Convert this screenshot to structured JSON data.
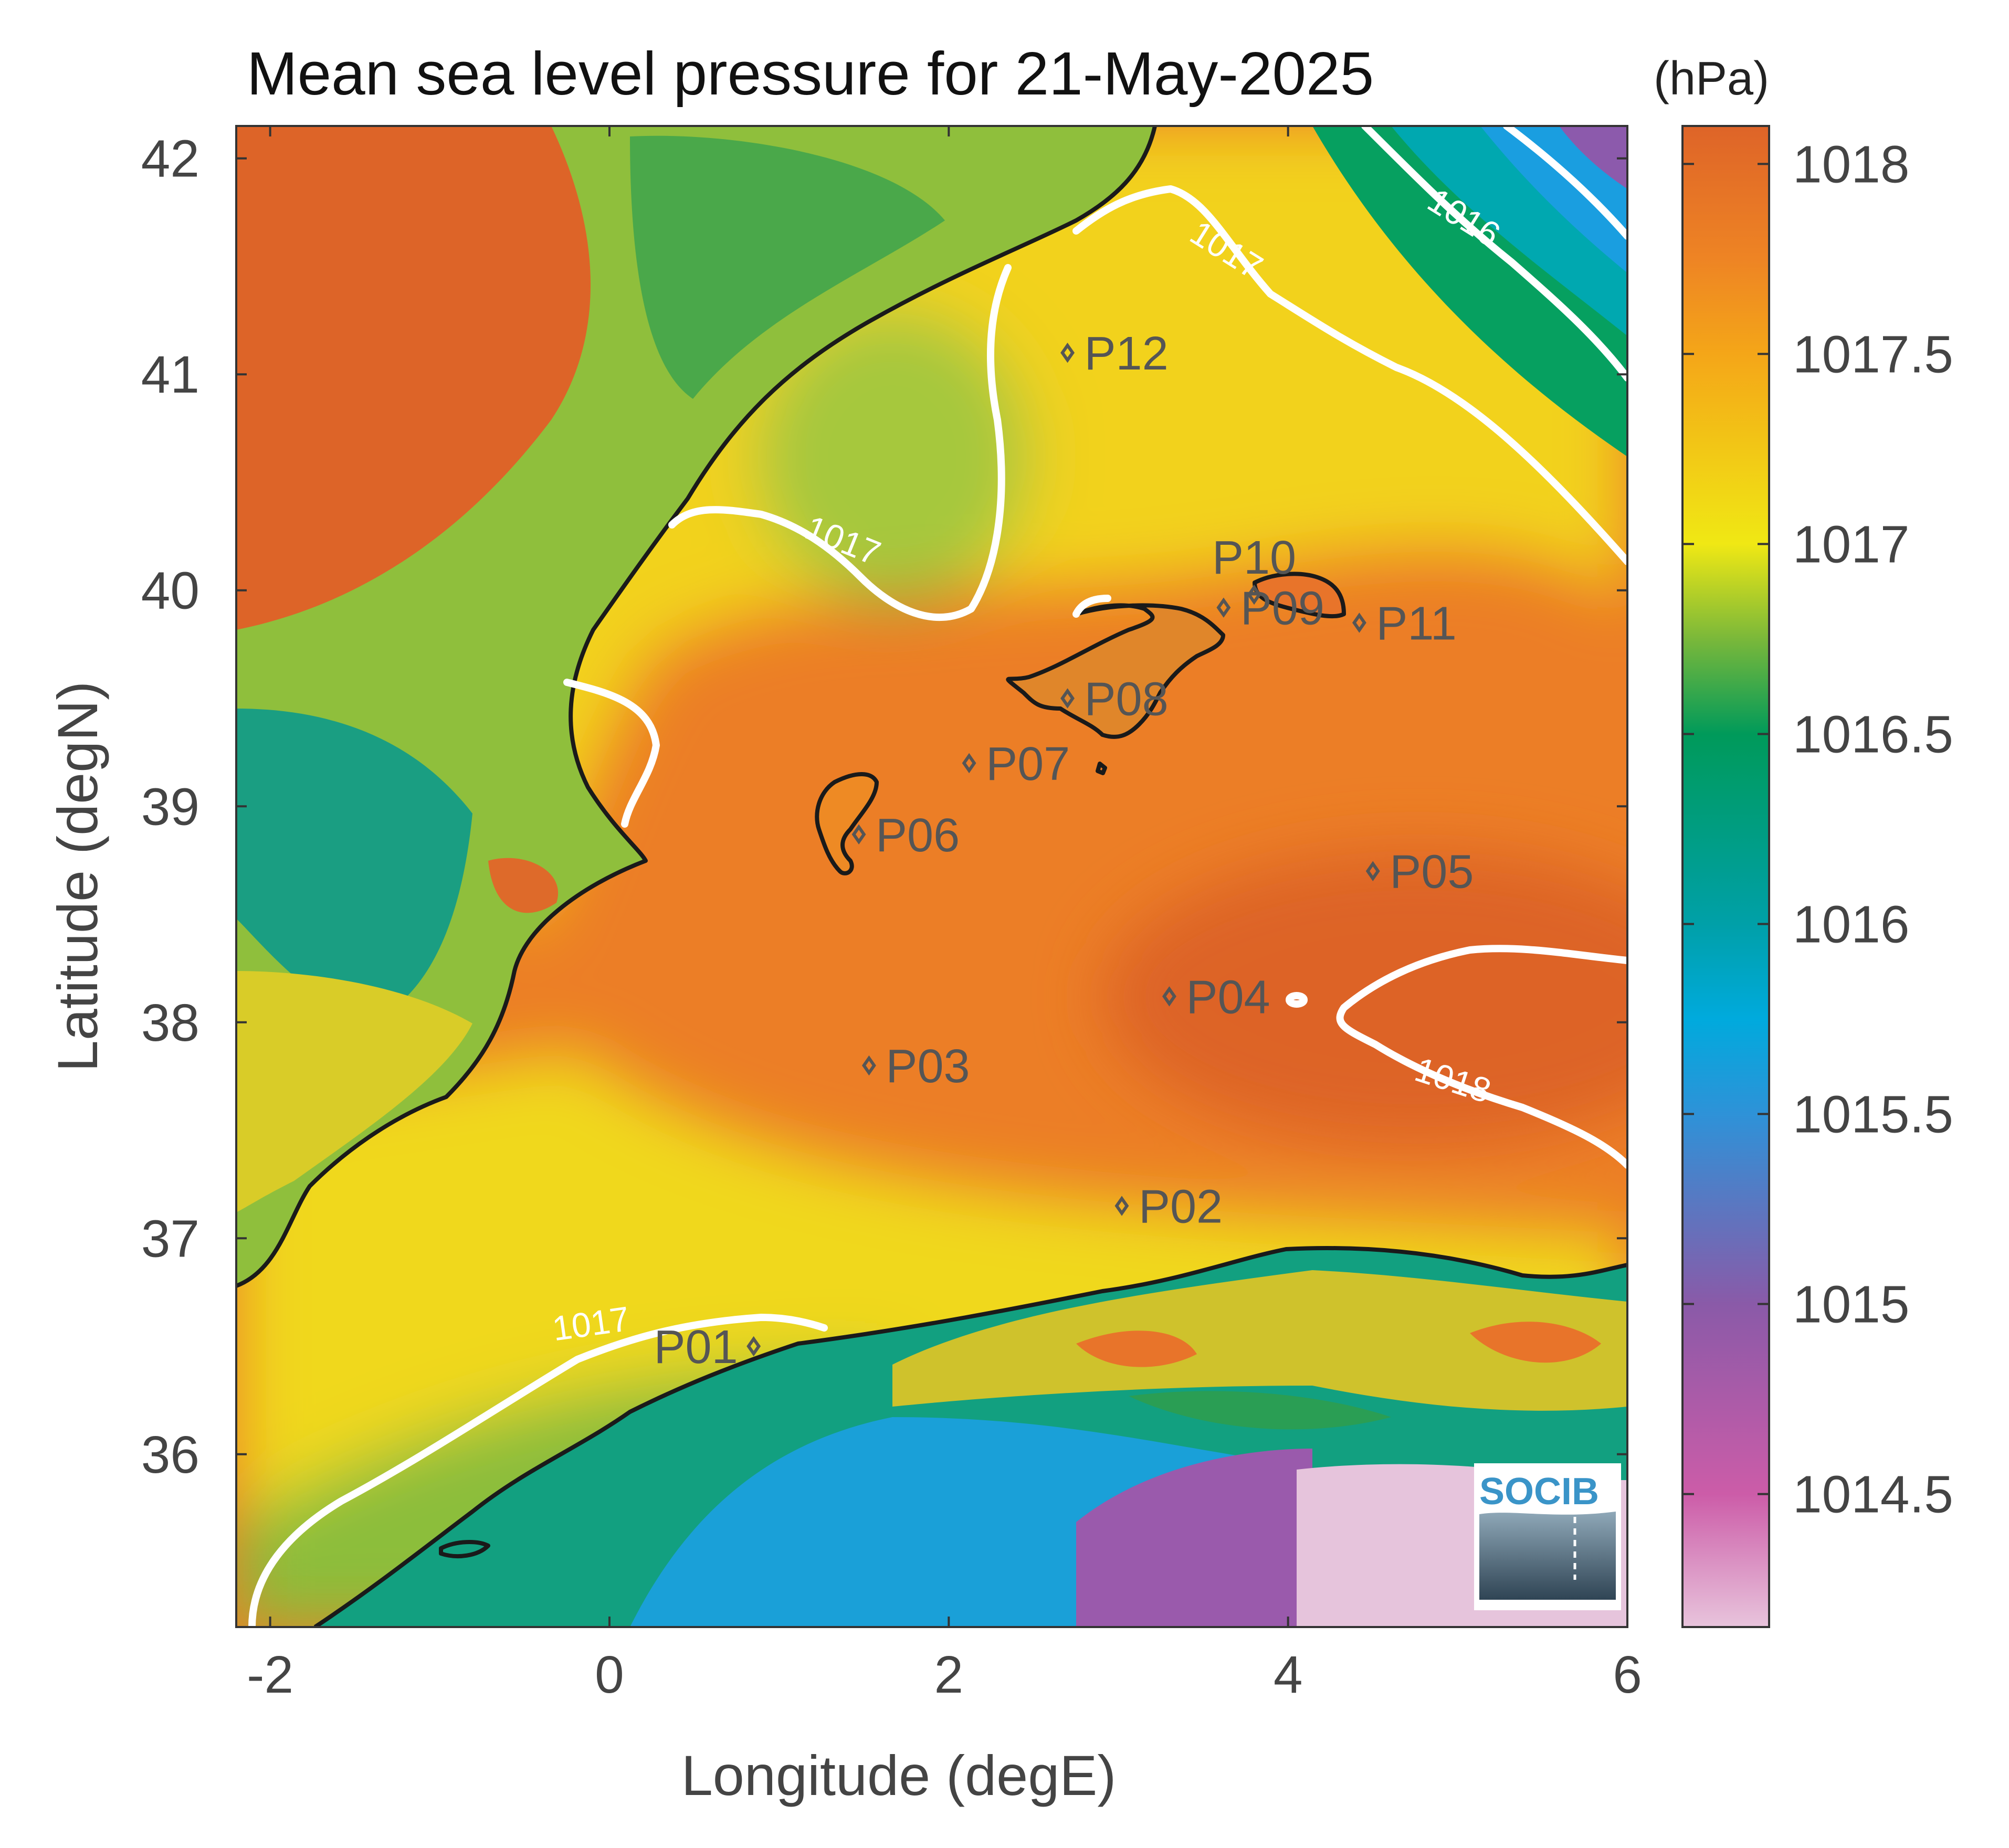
{
  "title": "Mean sea level pressure for 21-May-2025",
  "units": "(hPa)",
  "xlabel": "Longitude (degE)",
  "ylabel": "Latitude (degN)",
  "logo_text": "SOCIB",
  "x_range": [
    -2.2,
    6.0
  ],
  "y_range": [
    35.2,
    42.15
  ],
  "x_ticks": [
    {
      "value": -2,
      "label": "-2"
    },
    {
      "value": 0,
      "label": "0"
    },
    {
      "value": 2,
      "label": "2"
    },
    {
      "value": 4,
      "label": "4"
    },
    {
      "value": 6,
      "label": "6"
    }
  ],
  "y_ticks": [
    {
      "value": 36,
      "label": "36"
    },
    {
      "value": 37,
      "label": "37"
    },
    {
      "value": 38,
      "label": "38"
    },
    {
      "value": 39,
      "label": "39"
    },
    {
      "value": 40,
      "label": "40"
    },
    {
      "value": 41,
      "label": "41"
    },
    {
      "value": 42,
      "label": "42"
    }
  ],
  "colorbar": {
    "range": [
      1014.15,
      1018.1
    ],
    "ticks": [
      {
        "value": 1014.5,
        "label": "1014.5"
      },
      {
        "value": 1015,
        "label": "1015"
      },
      {
        "value": 1015.5,
        "label": "1015.5"
      },
      {
        "value": 1016,
        "label": "1016"
      },
      {
        "value": 1016.5,
        "label": "1016.5"
      },
      {
        "value": 1017,
        "label": "1017"
      },
      {
        "value": 1017.5,
        "label": "1017.5"
      },
      {
        "value": 1018,
        "label": "1018"
      }
    ],
    "stops": [
      {
        "value": 1014.15,
        "color": "#e8c4dc"
      },
      {
        "value": 1014.5,
        "color": "#cc5ca8"
      },
      {
        "value": 1015.0,
        "color": "#8a5aa8"
      },
      {
        "value": 1015.5,
        "color": "#2e92d8"
      },
      {
        "value": 1015.75,
        "color": "#00aadd"
      },
      {
        "value": 1016.0,
        "color": "#00a0a8"
      },
      {
        "value": 1016.5,
        "color": "#009a5a"
      },
      {
        "value": 1016.75,
        "color": "#7ab83a"
      },
      {
        "value": 1017.0,
        "color": "#f0e814"
      },
      {
        "value": 1017.5,
        "color": "#f4a618"
      },
      {
        "value": 1017.75,
        "color": "#ee8424"
      },
      {
        "value": 1018.1,
        "color": "#de6428"
      }
    ]
  },
  "contour_labels": [
    {
      "text": "1016",
      "lon": 5.0,
      "lat": 41.68,
      "angle": 32
    },
    {
      "text": "1017",
      "lon": 3.6,
      "lat": 41.53,
      "angle": 32
    },
    {
      "text": "1017",
      "lon": 1.35,
      "lat": 40.18,
      "angle": 22
    },
    {
      "text": "1017",
      "lon": -0.1,
      "lat": 36.55,
      "angle": -8
    },
    {
      "text": "1018",
      "lon": 4.95,
      "lat": 37.68,
      "angle": 18
    }
  ],
  "stations": [
    {
      "name": "P01",
      "lon": 0.85,
      "lat": 36.5
    },
    {
      "name": "P02",
      "lon": 3.02,
      "lat": 37.15
    },
    {
      "name": "P03",
      "lon": 1.53,
      "lat": 37.8
    },
    {
      "name": "P04",
      "lon": 3.3,
      "lat": 38.12
    },
    {
      "name": "P05",
      "lon": 4.5,
      "lat": 38.7
    },
    {
      "name": "P06",
      "lon": 1.47,
      "lat": 38.87
    },
    {
      "name": "P07",
      "lon": 2.12,
      "lat": 39.2
    },
    {
      "name": "P08",
      "lon": 2.7,
      "lat": 39.5
    },
    {
      "name": "P09",
      "lon": 3.62,
      "lat": 39.92
    },
    {
      "name": "P10",
      "lon": 3.8,
      "lat": 39.98
    },
    {
      "name": "P11",
      "lon": 4.42,
      "lat": 39.85
    },
    {
      "name": "P12",
      "lon": 2.7,
      "lat": 41.1
    }
  ]
}
